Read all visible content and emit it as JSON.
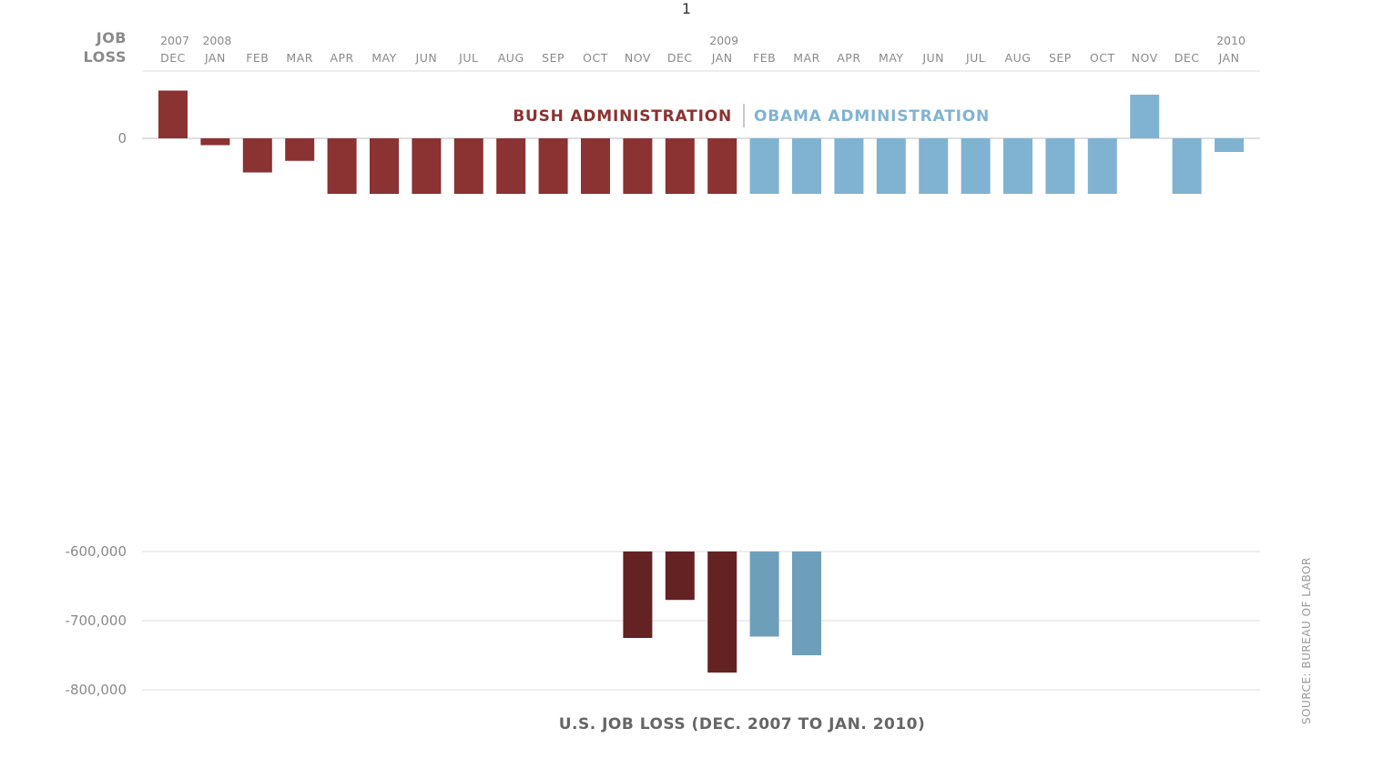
{
  "page_mark": "1",
  "chart_data": {
    "type": "bar",
    "title": "U.S. JOB LOSS (DEC. 2007 TO JAN. 2010)",
    "ylabel_lines": [
      "JOB",
      "LOSS"
    ],
    "source": "SOURCE: BUREAU OF LABOR",
    "y_axis_break": true,
    "upper_ylim": [
      -80000,
      70000
    ],
    "lower_ylim": [
      -800000,
      -600000
    ],
    "y_ticks_upper": [
      {
        "value": 0,
        "label": "0"
      }
    ],
    "y_ticks_lower": [
      {
        "value": -600000,
        "label": "-600,000"
      },
      {
        "value": -700000,
        "label": "-700,000"
      },
      {
        "value": -800000,
        "label": "-800,000"
      }
    ],
    "categories": [
      "DEC",
      "JAN",
      "FEB",
      "MAR",
      "APR",
      "MAY",
      "JUN",
      "JUL",
      "AUG",
      "SEP",
      "OCT",
      "NOV",
      "DEC",
      "JAN",
      "FEB",
      "MAR",
      "APR",
      "MAY",
      "JUN",
      "JUL",
      "AUG",
      "SEP",
      "OCT",
      "NOV",
      "DEC",
      "JAN"
    ],
    "year_labels": [
      {
        "index": 0,
        "label": "2007"
      },
      {
        "index": 1,
        "label": "2008"
      },
      {
        "index": 13,
        "label": "2009"
      },
      {
        "index": 25,
        "label": "2010"
      }
    ],
    "values": [
      70000,
      -10000,
      -50000,
      -33000,
      -250000,
      -350000,
      -400000,
      -450000,
      -500000,
      -550000,
      -580000,
      -725000,
      -670000,
      -775000,
      -723000,
      -750000,
      -500000,
      -450000,
      -400000,
      -350000,
      -300000,
      -250000,
      -200000,
      64000,
      -300000,
      -20000
    ],
    "series": [
      {
        "name": "BUSH ADMINISTRATION",
        "start": 0,
        "end": 13,
        "color": "#8b3232",
        "deep_color": "#642222"
      },
      {
        "name": "OBAMA ADMINISTRATION",
        "start": 14,
        "end": 25,
        "color": "#80b3d1",
        "deep_color": "#6e9fba"
      }
    ],
    "grid": true,
    "legend_placement": "top-center"
  }
}
